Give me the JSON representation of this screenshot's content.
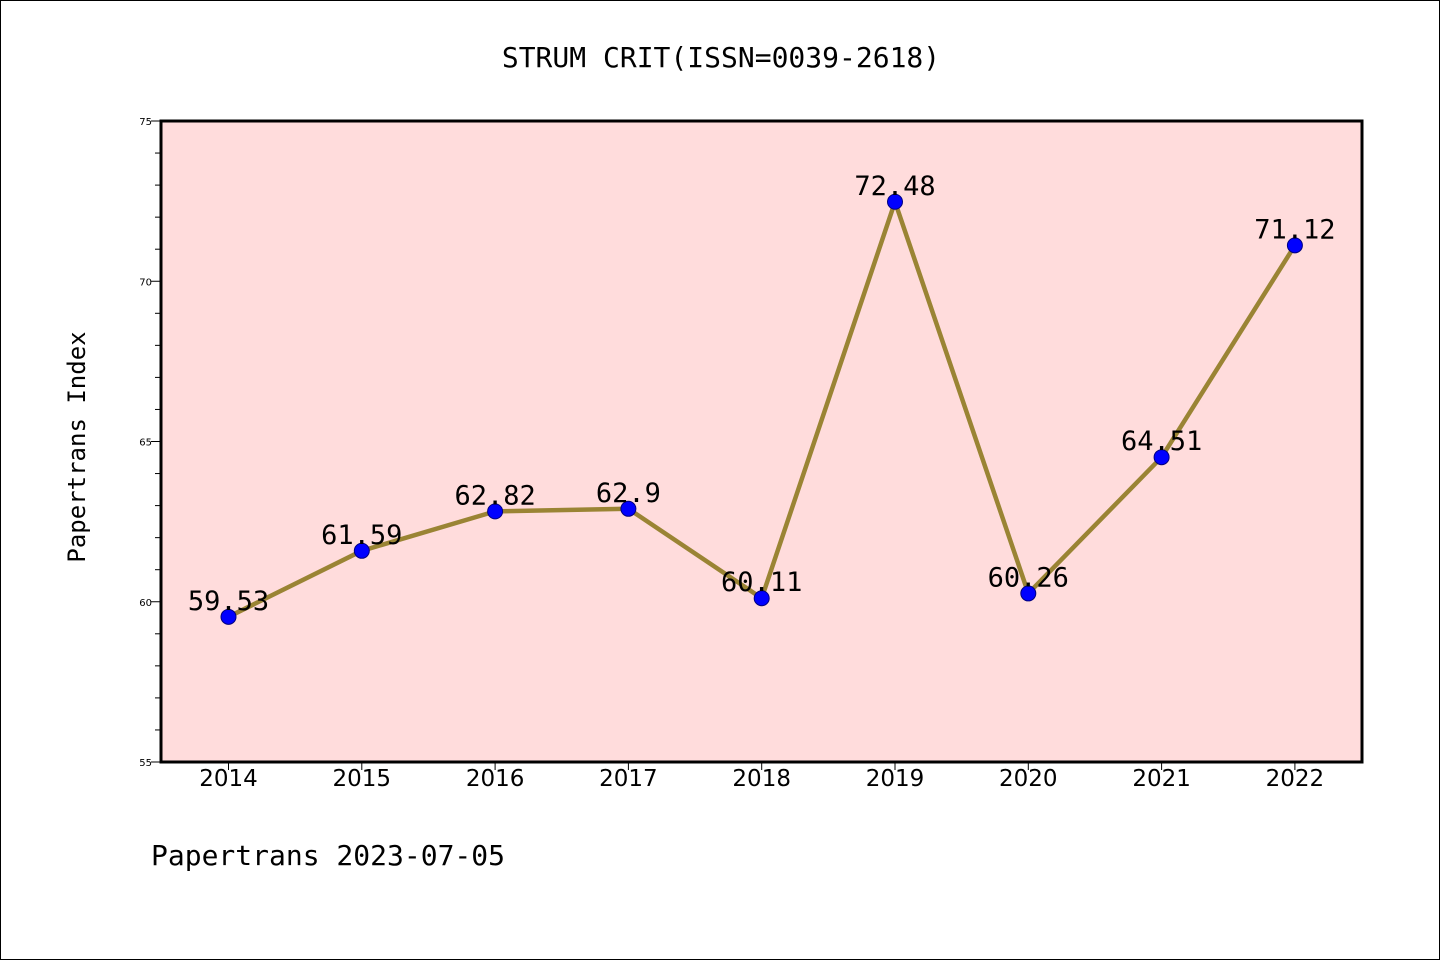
{
  "chart_data": {
    "type": "line",
    "title": "STRUM CRIT(ISSN=0039-2618)",
    "ylabel": "Papertrans Index",
    "xlabel": "",
    "footer": "Papertrans 2023-07-05",
    "x": [
      "2014",
      "2015",
      "2016",
      "2017",
      "2018",
      "2019",
      "2020",
      "2021",
      "2022"
    ],
    "values": [
      59.53,
      61.59,
      62.82,
      62.9,
      60.11,
      72.48,
      60.26,
      64.51,
      71.12
    ],
    "data_labels": [
      "59.53",
      "61.59",
      "62.82",
      "62.9",
      "60.11",
      "72.48",
      "60.26",
      "64.51",
      "71.12"
    ],
    "ylim": [
      55,
      75
    ],
    "yticks": [
      55,
      60,
      65,
      70,
      75
    ],
    "ytick_labels": [
      "55",
      "60",
      "65",
      "70",
      "75"
    ],
    "grid": false,
    "colors": {
      "plot_background": "#ffdcdc",
      "line": "#9a8434",
      "marker": "#0000ff",
      "marker_edge": "#000080"
    }
  }
}
